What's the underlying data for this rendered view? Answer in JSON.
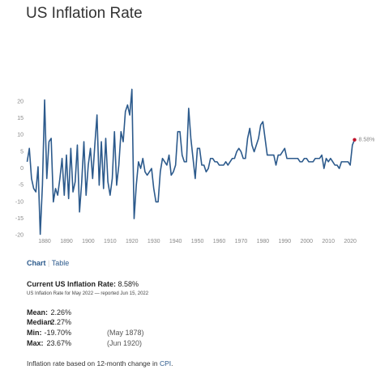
{
  "header": {
    "title": "US Inflation Rate"
  },
  "chart_data": {
    "type": "line",
    "color": "#2c5a8c",
    "marker_color": "#c0122a",
    "end_label": "8.58%",
    "grid": false,
    "xlim": [
      1872,
      2022
    ],
    "ylim": [
      -22,
      24
    ],
    "xticks": [
      1880,
      1890,
      1900,
      1910,
      1920,
      1930,
      1940,
      1950,
      1960,
      1970,
      1980,
      1990,
      2000,
      2010,
      2020
    ],
    "yticks": [
      -20,
      -15,
      -10,
      -5,
      0,
      5,
      10,
      15,
      20
    ],
    "x": [
      1872,
      1873,
      1874,
      1875,
      1876,
      1877,
      1878,
      1879,
      1880,
      1881,
      1882,
      1883,
      1884,
      1885,
      1886,
      1887,
      1888,
      1889,
      1890,
      1891,
      1892,
      1893,
      1894,
      1895,
      1896,
      1897,
      1898,
      1899,
      1900,
      1901,
      1902,
      1903,
      1904,
      1905,
      1906,
      1907,
      1908,
      1909,
      1910,
      1911,
      1912,
      1913,
      1914,
      1915,
      1916,
      1917,
      1918,
      1919,
      1920,
      1921,
      1922,
      1923,
      1924,
      1925,
      1926,
      1927,
      1928,
      1929,
      1930,
      1931,
      1932,
      1933,
      1934,
      1935,
      1936,
      1937,
      1938,
      1939,
      1940,
      1941,
      1942,
      1943,
      1944,
      1945,
      1946,
      1947,
      1948,
      1949,
      1950,
      1951,
      1952,
      1953,
      1954,
      1955,
      1956,
      1957,
      1958,
      1959,
      1960,
      1961,
      1962,
      1963,
      1964,
      1965,
      1966,
      1967,
      1968,
      1969,
      1970,
      1971,
      1972,
      1973,
      1974,
      1975,
      1976,
      1977,
      1978,
      1979,
      1980,
      1981,
      1982,
      1983,
      1984,
      1985,
      1986,
      1987,
      1988,
      1989,
      1990,
      1991,
      1992,
      1993,
      1994,
      1995,
      1996,
      1997,
      1998,
      1999,
      2000,
      2001,
      2002,
      2003,
      2004,
      2005,
      2006,
      2007,
      2008,
      2009,
      2010,
      2011,
      2012,
      2013,
      2014,
      2015,
      2016,
      2017,
      2018,
      2019,
      2020,
      2021,
      2022
    ],
    "values": [
      2,
      6,
      -3,
      -6,
      -7,
      0.5,
      -19.7,
      -5,
      20.5,
      -3,
      8,
      9,
      -10,
      -6,
      -8,
      -3,
      3,
      -8,
      4,
      -9,
      6,
      -7,
      -4,
      7,
      -13,
      -4,
      8,
      -8,
      1,
      6,
      -3,
      7,
      16,
      -5,
      8,
      -6,
      9,
      -4,
      -8,
      -3,
      11,
      -5,
      1,
      11,
      8,
      17,
      19,
      16,
      23.67,
      -15,
      -5,
      2,
      0,
      3,
      -1,
      -2,
      -1,
      0,
      -6,
      -10,
      -10,
      -1,
      3,
      2,
      1,
      4,
      -2,
      -1,
      1,
      11,
      11,
      4,
      2,
      2,
      18,
      9,
      3,
      -3,
      6,
      6,
      1,
      1,
      -1,
      0,
      3,
      3,
      2,
      2,
      1,
      1,
      1,
      2,
      1,
      2,
      3,
      3,
      5,
      6,
      5,
      3,
      3,
      9,
      12,
      7,
      5,
      7,
      9,
      13,
      14,
      9,
      4,
      4,
      4,
      4,
      1,
      4,
      4,
      5,
      6,
      3,
      3,
      3,
      3,
      3,
      3,
      2,
      2,
      3,
      3,
      2,
      2,
      2,
      3,
      3,
      3,
      4,
      0,
      3,
      2,
      3,
      2,
      1,
      1,
      0,
      2,
      2,
      2,
      2,
      1,
      7,
      8.58
    ]
  },
  "tabs": [
    "Chart",
    "Table"
  ],
  "current": {
    "label": "Current US Inflation Rate:",
    "value": "8.58%",
    "note": "US Inflation Rate for May 2022 — reported Jun 15, 2022"
  },
  "stats": [
    [
      "Mean:",
      "2.26%"
    ],
    [
      "Median:",
      "2.27%"
    ],
    [
      "Min:",
      "-19.70%",
      "(May 1878)"
    ],
    [
      "Max:",
      "23.67%",
      "(Jun 1920)"
    ]
  ],
  "footer": {
    "text": "Inflation rate based on 12-month change in",
    "link": "CPI",
    "end": "."
  }
}
